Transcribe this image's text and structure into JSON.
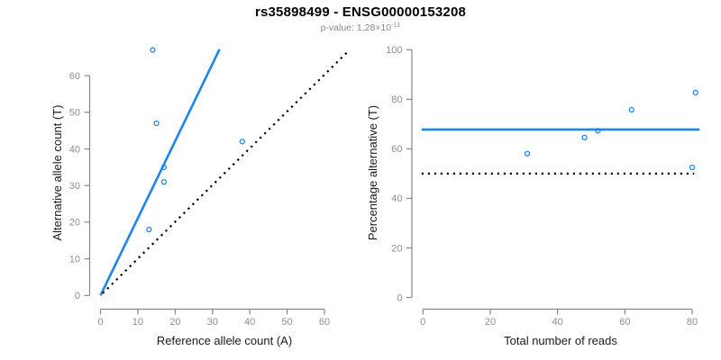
{
  "header": {
    "title": "rs35898499 - ENSG00000153208",
    "pvalue_prefix": "p-value: 1.28×10",
    "pvalue_exponent": "-11"
  },
  "colors": {
    "accent_blue": "#1C86EE",
    "axis_gray": "#878787",
    "tick_label_gray": "#8e8e8e",
    "axis_title_color": "#1a1a1a",
    "identity_black": "#000000",
    "subtitle_gray": "#8a8a8a",
    "background": "#ffffff"
  },
  "chart_data": [
    {
      "type": "scatter",
      "panel": "left",
      "title": "",
      "xlabel": "Reference allele count (A)",
      "ylabel": "Alternative allele count (T)",
      "xticks": [
        0,
        10,
        20,
        30,
        40,
        50,
        60
      ],
      "yticks": [
        0,
        10,
        20,
        30,
        40,
        50,
        60
      ],
      "xlim": [
        0,
        60
      ],
      "ylim": [
        0,
        67
      ],
      "grid": false,
      "legend": "none",
      "points": [
        {
          "x": 14,
          "y": 67
        },
        {
          "x": 15,
          "y": 47
        },
        {
          "x": 17,
          "y": 35
        },
        {
          "x": 17,
          "y": 31
        },
        {
          "x": 38,
          "y": 42
        },
        {
          "x": 13,
          "y": 18
        }
      ],
      "lines": [
        {
          "name": "fitted-ratio-line",
          "style": "solid",
          "color": "#1C86EE",
          "slope": 2.1,
          "from": {
            "x": 0,
            "y": 0
          },
          "to": {
            "x": 31.9,
            "y": 67.2
          }
        },
        {
          "name": "identity-line",
          "style": "dotted",
          "color": "#000000",
          "slope": 1,
          "from": {
            "x": 0.6,
            "y": 0.6
          },
          "to": {
            "x": 66.6,
            "y": 66.9
          }
        }
      ]
    },
    {
      "type": "scatter",
      "panel": "right",
      "title": "",
      "xlabel": "Total number of reads",
      "ylabel": "Percentage alternative (T)",
      "xticks": [
        0,
        20,
        40,
        60,
        80
      ],
      "yticks": [
        0,
        20,
        40,
        60,
        80,
        100
      ],
      "xlim": [
        0,
        82
      ],
      "ylim": [
        0,
        100
      ],
      "grid": false,
      "legend": "none",
      "points": [
        {
          "x": 31,
          "y": 58.1
        },
        {
          "x": 48,
          "y": 64.6
        },
        {
          "x": 52,
          "y": 67.3
        },
        {
          "x": 62,
          "y": 75.8
        },
        {
          "x": 81,
          "y": 82.7
        },
        {
          "x": 80,
          "y": 52.5
        }
      ],
      "lines": [
        {
          "name": "mean-alt-percentage-line",
          "style": "solid",
          "color": "#1C86EE",
          "value": 67.8,
          "from": {
            "x": -0.4,
            "y": 67.8
          },
          "to": {
            "x": 82.2,
            "y": 67.8
          }
        },
        {
          "name": "expected-50pct-line",
          "style": "dotted",
          "color": "#000000",
          "value": 50,
          "from": {
            "x": -0.4,
            "y": 50
          },
          "to": {
            "x": 80.6,
            "y": 50
          }
        }
      ]
    }
  ]
}
